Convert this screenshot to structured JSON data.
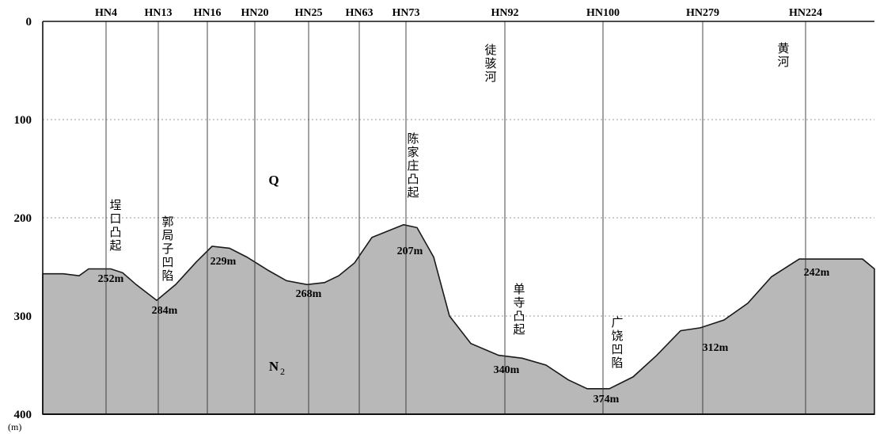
{
  "chart_data": {
    "type": "area",
    "title": "",
    "y_unit": "(m)",
    "ylim": [
      0,
      400
    ],
    "y_ticks": [
      "0",
      "100",
      "200",
      "300",
      "400"
    ],
    "wells": [
      "HN4",
      "HN13",
      "HN16",
      "HN20",
      "HN25",
      "HN63",
      "HN73",
      "HN92",
      "HN100",
      "HN279",
      "HN224"
    ],
    "strata_labels": {
      "upper": "Q",
      "lower_main": "N",
      "lower_sub": "2"
    },
    "profile_depths_m": [
      257,
      257,
      259,
      252,
      252,
      256,
      268,
      284,
      268,
      245,
      229,
      231,
      240,
      254,
      264,
      268,
      266,
      259,
      246,
      220,
      207,
      210,
      240,
      300,
      328,
      340,
      343,
      350,
      365,
      374,
      374,
      362,
      340,
      315,
      312,
      304,
      287,
      260,
      242,
      242,
      252
    ],
    "depth_annotations": [
      "252m",
      "284m",
      "229m",
      "268m",
      "207m",
      "340m",
      "374m",
      "312m",
      "242m"
    ],
    "structure_labels": [
      "埕口凸起",
      "郭局子凹陷",
      "陈家庄凸起",
      "徒骇河",
      "单寺凸起",
      "广饶凹陷",
      "黄河"
    ]
  }
}
